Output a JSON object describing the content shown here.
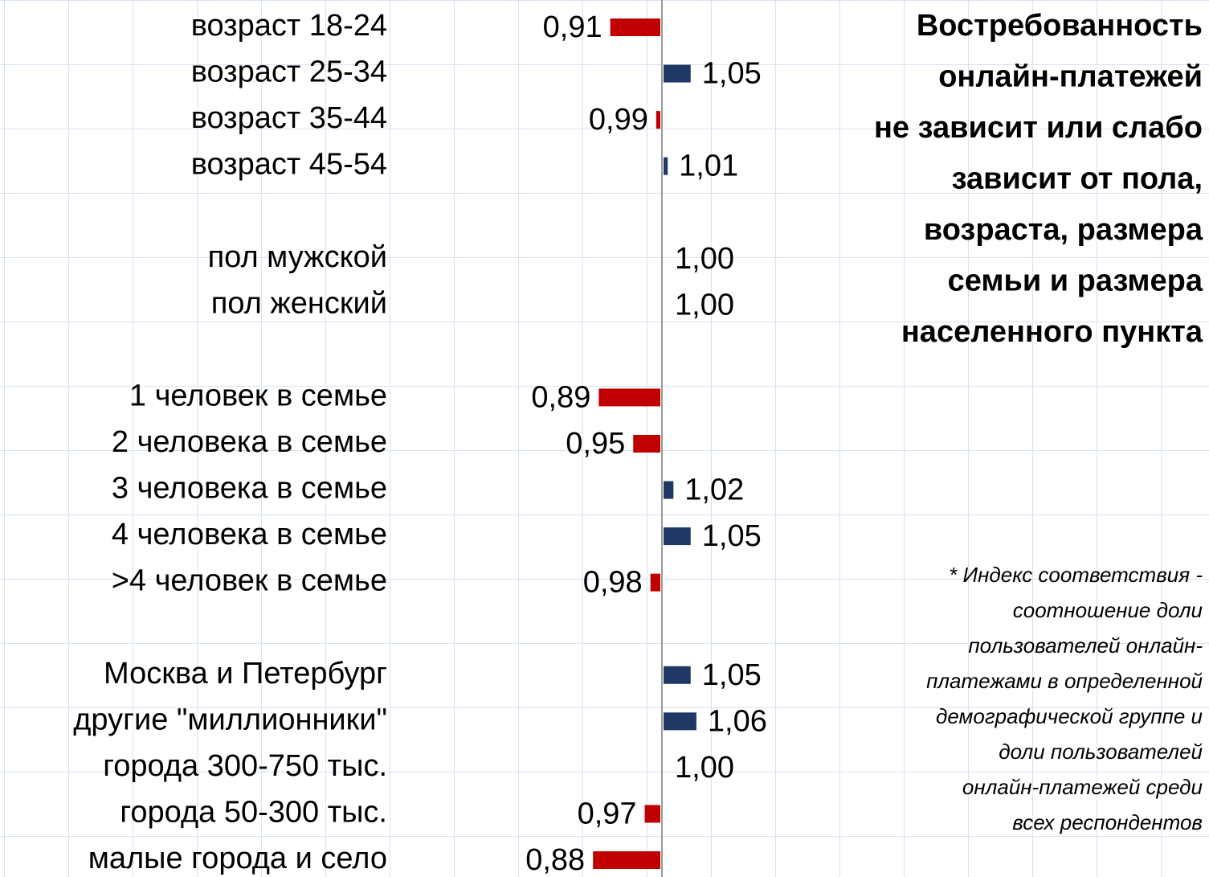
{
  "chart_data": {
    "type": "bar",
    "orientation": "horizontal",
    "title": [
      "Востребованность",
      "онлайн-платежей",
      "не зависит или слабо",
      "зависит от пола,",
      "возраста, размера",
      "семьи и размера",
      "населенного пункта"
    ],
    "note": [
      "* Индекс соответствия -",
      "соотношение доли",
      "пользователей онлайн-",
      "платежами в определенной",
      "демографической группе и",
      "доли пользователей",
      "онлайн-платежей среди",
      "всех респондентов"
    ],
    "categories": [
      "возраст 18-24",
      "возраст 25-34",
      "возраст 35-44",
      "возраст 45-54",
      null,
      "пол мужской",
      "пол женский",
      null,
      "1 человек в семье",
      "2 человека в семье",
      "3 человека в семье",
      "4 человека в семье",
      ">4 человек в семье",
      null,
      "Москва и Петербург",
      "другие \"миллионники\"",
      "города 300-750 тыс.",
      "города 50-300 тыс.",
      "малые города и село"
    ],
    "values": [
      0.91,
      1.05,
      0.99,
      1.01,
      null,
      1.0,
      1.0,
      null,
      0.89,
      0.95,
      1.02,
      1.05,
      0.98,
      null,
      1.05,
      1.06,
      1.0,
      0.97,
      0.88
    ],
    "value_labels": [
      "0,91",
      "1,05",
      "0,99",
      "1,01",
      null,
      "1,00",
      "1,00",
      null,
      "0,89",
      "0,95",
      "1,02",
      "1,05",
      "0,98",
      null,
      "1,05",
      "1,06",
      "1,00",
      "0,97",
      "0,88"
    ],
    "baseline": 1,
    "xlim": [
      0.8,
      1.2
    ],
    "below_color": "#c00000",
    "above_color": "#1f3864"
  }
}
